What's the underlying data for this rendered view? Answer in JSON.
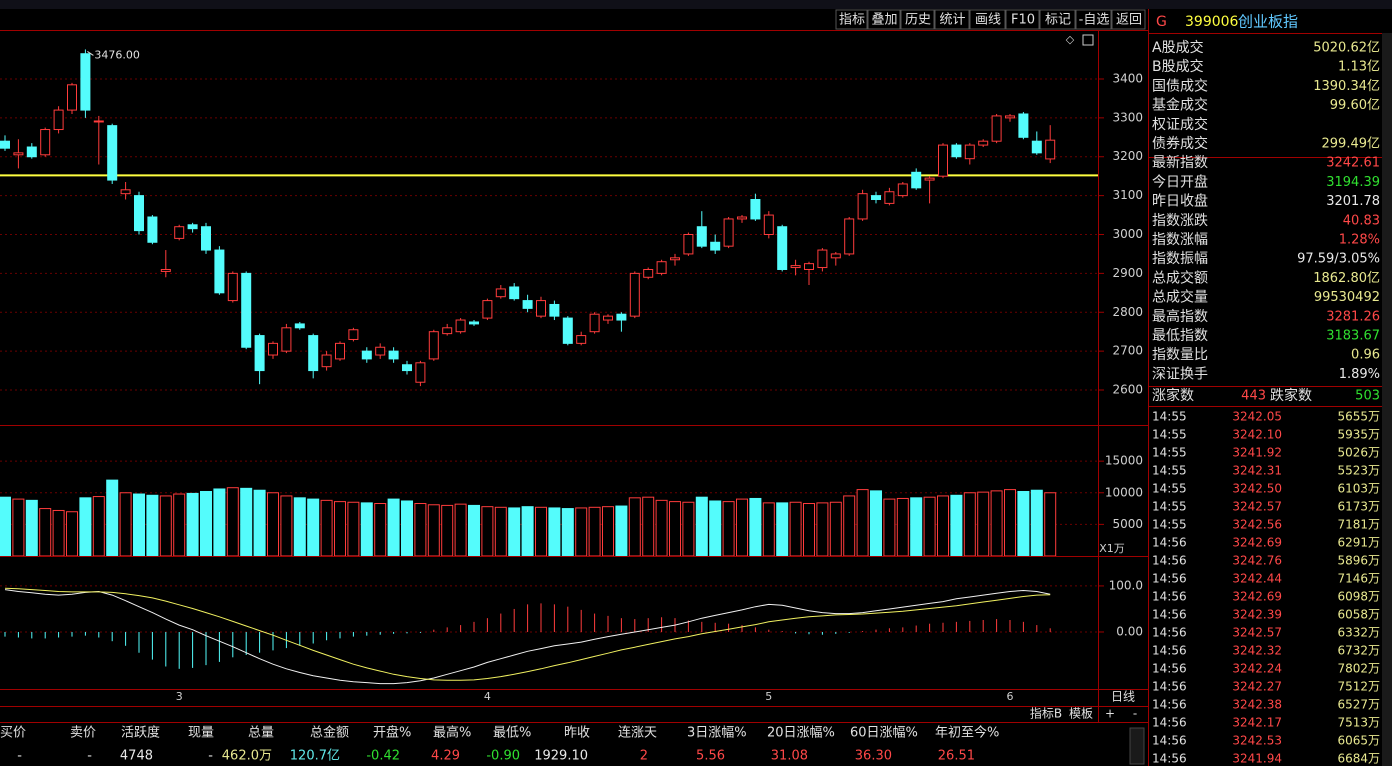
{
  "toolbar": [
    "指标",
    "叠加",
    "历史",
    "统计",
    "画线",
    "F10",
    "标记",
    "-自选",
    "返回"
  ],
  "header": {
    "badge": "G",
    "code": "399006",
    "name": "创业板指"
  },
  "stats": {
    "rows": [
      {
        "label": "A股成交",
        "value": "5020.62亿",
        "color": "#e8e890"
      },
      {
        "label": "B股成交",
        "value": "1.13亿",
        "color": "#e8e890"
      },
      {
        "label": "国债成交",
        "value": "1390.34亿",
        "color": "#e8e890"
      },
      {
        "label": "基金成交",
        "value": "99.60亿",
        "color": "#e8e890"
      },
      {
        "label": "权证成交"
      },
      {
        "label": "债券成交",
        "value": "299.49亿",
        "color": "#e8e890"
      },
      {
        "label": "最新指数",
        "value": "3242.61",
        "color": "#ff4848"
      },
      {
        "label": "今日开盘",
        "value": "3194.39",
        "color": "#30e030"
      },
      {
        "label": "昨日收盘",
        "value": "3201.78",
        "color": "#e8e8e8"
      },
      {
        "label": "指数涨跌",
        "value": "40.83",
        "color": "#ff4848"
      },
      {
        "label": "指数涨幅",
        "value": "1.28%",
        "color": "#ff4848"
      },
      {
        "label": "指数振幅",
        "value": "97.59/3.05%",
        "color": "#e8e8e8"
      },
      {
        "label": "总成交额",
        "value": "1862.80亿",
        "color": "#e8e890"
      },
      {
        "label": "总成交量",
        "value": "99530492",
        "color": "#e8e890"
      },
      {
        "label": "最高指数",
        "value": "3281.26",
        "color": "#ff4848"
      },
      {
        "label": "最低指数",
        "value": "3183.67",
        "color": "#30e030"
      },
      {
        "label": "指数量比",
        "value": "0.96",
        "color": "#e8e890"
      },
      {
        "label": "深证换手",
        "value": "1.89%",
        "color": "#e8e8e8"
      }
    ]
  },
  "breadth": {
    "up_label": "涨家数",
    "up": "443",
    "down_label": "跌家数",
    "down": "503"
  },
  "ticks": [
    [
      "14:55",
      "3242.05",
      "5655万"
    ],
    [
      "14:55",
      "3242.10",
      "5935万"
    ],
    [
      "14:55",
      "3241.92",
      "5026万"
    ],
    [
      "14:55",
      "3242.31",
      "5523万"
    ],
    [
      "14:55",
      "3242.50",
      "6103万"
    ],
    [
      "14:55",
      "3242.57",
      "6173万"
    ],
    [
      "14:55",
      "3242.56",
      "7181万"
    ],
    [
      "14:56",
      "3242.69",
      "6291万"
    ],
    [
      "14:56",
      "3242.76",
      "5896万"
    ],
    [
      "14:56",
      "3242.44",
      "7146万"
    ],
    [
      "14:56",
      "3242.69",
      "6098万"
    ],
    [
      "14:56",
      "3242.39",
      "6058万"
    ],
    [
      "14:56",
      "3242.57",
      "6332万"
    ],
    [
      "14:56",
      "3242.32",
      "6732万"
    ],
    [
      "14:56",
      "3242.24",
      "7802万"
    ],
    [
      "14:56",
      "3242.27",
      "7512万"
    ],
    [
      "14:56",
      "3242.38",
      "6527万"
    ],
    [
      "14:56",
      "3242.17",
      "7513万"
    ],
    [
      "14:56",
      "3242.53",
      "6065万"
    ],
    [
      "14:56",
      "3241.94",
      "6684万"
    ]
  ],
  "bottom_bar": {
    "columns": [
      {
        "header": "买价",
        "value": "-",
        "color": "#e8e8e8"
      },
      {
        "header": "卖价",
        "value": "-",
        "color": "#e8e8e8"
      },
      {
        "header": "活跃度",
        "value": "4748",
        "color": "#e8e8e8"
      },
      {
        "header": "现量",
        "value": "-",
        "color": "#e8e8e8"
      },
      {
        "header": "总量",
        "value": "462.0万",
        "color": "#e8e890"
      },
      {
        "header": "总金额",
        "value": "120.7亿",
        "color": "#60e8e8"
      },
      {
        "header": "开盘%",
        "value": "-0.42",
        "color": "#30e030"
      },
      {
        "header": "最高%",
        "value": "4.29",
        "color": "#ff4848"
      },
      {
        "header": "最低%",
        "value": "-0.90",
        "color": "#30e030"
      },
      {
        "header": "昨收",
        "value": "1929.10",
        "color": "#e8e8e8"
      },
      {
        "header": "连涨天",
        "value": "2",
        "color": "#ff4848"
      },
      {
        "header": "3日涨幅%",
        "value": "5.56",
        "color": "#ff4848"
      },
      {
        "header": "20日涨幅%",
        "value": "31.08",
        "color": "#ff4848"
      },
      {
        "header": "60日涨幅%",
        "value": "36.30",
        "color": "#ff4848"
      },
      {
        "header": "年初至今%",
        "value": "26.51",
        "color": "#ff4848"
      }
    ]
  },
  "controls": {
    "period": "日线",
    "buttons": [
      "指标B",
      "模板",
      "+",
      "-"
    ]
  },
  "chart_data": [
    {
      "type": "candlestick",
      "categories": [
        null,
        null,
        null,
        null,
        null,
        null,
        null,
        null,
        null,
        null,
        null,
        null,
        null,
        "3",
        null,
        null,
        null,
        null,
        null,
        null,
        null,
        null,
        null,
        null,
        null,
        null,
        null,
        null,
        null,
        null,
        null,
        null,
        null,
        null,
        null,
        null,
        "4",
        null,
        null,
        null,
        null,
        null,
        null,
        null,
        null,
        null,
        null,
        null,
        null,
        null,
        null,
        null,
        null,
        null,
        null,
        null,
        null,
        "5",
        null,
        null,
        null,
        null,
        null,
        null,
        null,
        null,
        null,
        null,
        null,
        null,
        null,
        null,
        null,
        null,
        null,
        "6",
        null,
        null,
        null
      ],
      "open": [
        3240,
        3205,
        3225,
        3205,
        3270,
        3320,
        3465,
        3290,
        3280,
        3105,
        3100,
        3045,
        2905,
        2990,
        3025,
        3020,
        2960,
        2830,
        2900,
        2740,
        2690,
        2700,
        2770,
        2740,
        2660,
        2680,
        2730,
        2700,
        2690,
        2700,
        2665,
        2620,
        2680,
        2745,
        2750,
        2775,
        2785,
        2840,
        2865,
        2830,
        2790,
        2820,
        2785,
        2720,
        2750,
        2780,
        2795,
        2790,
        2890,
        2900,
        2935,
        2950,
        3020,
        2980,
        2970,
        3040,
        3090,
        3000,
        3020,
        2915,
        2910,
        2915,
        2940,
        2950,
        3040,
        3100,
        3080,
        3100,
        3160,
        3140,
        3150,
        3230,
        3195,
        3230,
        3240,
        3300,
        3310,
        3240,
        3194.39
      ],
      "high": [
        3255,
        3245,
        3235,
        3275,
        3330,
        3390,
        3476,
        3305,
        3285,
        3135,
        3110,
        3050,
        2960,
        3025,
        3030,
        3030,
        2970,
        2905,
        2905,
        2745,
        2725,
        2770,
        2775,
        2745,
        2700,
        2725,
        2760,
        2710,
        2720,
        2710,
        2675,
        2675,
        2755,
        2770,
        2785,
        2780,
        2835,
        2870,
        2875,
        2845,
        2840,
        2830,
        2790,
        2750,
        2800,
        2795,
        2800,
        2905,
        2915,
        2935,
        2950,
        3005,
        3060,
        3000,
        3045,
        3050,
        3105,
        3060,
        3025,
        2935,
        2930,
        2965,
        2955,
        3045,
        3115,
        3110,
        3120,
        3135,
        3170,
        3150,
        3235,
        3235,
        3235,
        3245,
        3310,
        3310,
        3315,
        3265,
        3281.26
      ],
      "low": [
        3215,
        3170,
        3195,
        3200,
        3260,
        3310,
        3300,
        3180,
        3130,
        3090,
        3000,
        2975,
        2890,
        2985,
        3005,
        2950,
        2845,
        2825,
        2705,
        2615,
        2680,
        2695,
        2755,
        2630,
        2650,
        2675,
        2725,
        2670,
        2680,
        2670,
        2640,
        2610,
        2675,
        2740,
        2745,
        2765,
        2780,
        2835,
        2830,
        2800,
        2785,
        2780,
        2715,
        2715,
        2745,
        2770,
        2750,
        2785,
        2885,
        2895,
        2920,
        2945,
        2965,
        2950,
        2965,
        3030,
        3035,
        2990,
        2905,
        2895,
        2870,
        2905,
        2920,
        2945,
        3035,
        3080,
        3075,
        3095,
        3115,
        3080,
        3145,
        3195,
        3180,
        3225,
        3235,
        3290,
        3245,
        3205,
        3183.67
      ],
      "close": [
        3222,
        3210,
        3200,
        3270,
        3320,
        3385,
        3320,
        3292,
        3140,
        3115,
        3010,
        2980,
        2910,
        3020,
        3015,
        2960,
        2850,
        2900,
        2710,
        2650,
        2720,
        2760,
        2760,
        2650,
        2690,
        2720,
        2755,
        2680,
        2710,
        2680,
        2650,
        2670,
        2750,
        2760,
        2780,
        2770,
        2830,
        2860,
        2835,
        2810,
        2830,
        2790,
        2720,
        2740,
        2795,
        2790,
        2780,
        2900,
        2910,
        2930,
        2940,
        3000,
        2970,
        2960,
        3040,
        3045,
        3040,
        3050,
        2910,
        2920,
        2925,
        2960,
        2950,
        3040,
        3105,
        3090,
        3110,
        3130,
        3120,
        3145,
        3230,
        3200,
        3230,
        3240,
        3305,
        3305,
        3250,
        3210,
        3242.61
      ],
      "up_color": "#ff3c3c",
      "down_color": "#54fcfc",
      "ylim": [
        2510,
        3526
      ],
      "yticks": [
        2600,
        2700,
        2800,
        2900,
        3000,
        3100,
        3200,
        3300,
        3400
      ],
      "grid": true,
      "annotation": {
        "value": 3476,
        "label": "3476.00"
      },
      "hline": 3152,
      "hline_color": "#ffff40"
    },
    {
      "type": "bar",
      "unit_label": "X1万",
      "values": [
        9300,
        9000,
        8800,
        7500,
        7200,
        7000,
        9200,
        9400,
        12000,
        10000,
        9800,
        9600,
        9500,
        9800,
        9900,
        10200,
        10600,
        10800,
        10700,
        10400,
        10000,
        9500,
        9200,
        9000,
        8800,
        8600,
        8500,
        8400,
        8300,
        9000,
        8700,
        8300,
        8100,
        8000,
        8200,
        8000,
        7800,
        7700,
        7600,
        7800,
        7700,
        7600,
        7500,
        7600,
        7700,
        7800,
        7900,
        9200,
        9300,
        8800,
        8600,
        8500,
        9300,
        8700,
        8600,
        9000,
        9100,
        8400,
        8400,
        8500,
        8300,
        8400,
        8500,
        9500,
        10500,
        10300,
        9000,
        9100,
        9200,
        9300,
        9500,
        9600,
        10000,
        10100,
        10300,
        10500,
        10200,
        10400,
        10000
      ],
      "ylim": [
        0,
        20400
      ],
      "yticks": [
        5000,
        10000,
        15000
      ],
      "grid": true
    },
    {
      "type": "macd",
      "values": [
        -10,
        -12,
        -14,
        -14,
        -12,
        -10,
        -8,
        -12,
        -20,
        -30,
        -45,
        -60,
        -75,
        -80,
        -78,
        -72,
        -65,
        -55,
        -50,
        -45,
        -40,
        -35,
        -30,
        -25,
        -18,
        -14,
        -10,
        -8,
        -6,
        -4,
        -3,
        -2,
        5,
        10,
        15,
        22,
        30,
        40,
        50,
        60,
        62,
        60,
        55,
        48,
        40,
        35,
        30,
        28,
        30,
        32,
        30,
        25,
        22,
        20,
        18,
        15,
        10,
        5,
        2,
        -3,
        -5,
        -6,
        -4,
        -2,
        2,
        5,
        8,
        10,
        14,
        18,
        20,
        22,
        24,
        26,
        28,
        26,
        22,
        15,
        8
      ],
      "up_color": "#ff3c3c",
      "down_color": "#54fcfc",
      "series": [
        {
          "color": "#f0f0f0",
          "values": [
            92,
            88,
            85,
            82,
            80,
            82,
            86,
            88,
            80,
            68,
            55,
            42,
            28,
            15,
            5,
            -8,
            -20,
            -32,
            -45,
            -58,
            -70,
            -80,
            -88,
            -95,
            -100,
            -105,
            -108,
            -110,
            -112,
            -112,
            -110,
            -106,
            -100,
            -92,
            -84,
            -76,
            -66,
            -58,
            -50,
            -42,
            -36,
            -30,
            -26,
            -22,
            -16,
            -10,
            -5,
            0,
            5,
            10,
            15,
            22,
            30,
            36,
            42,
            48,
            55,
            60,
            58,
            52,
            46,
            42,
            40,
            40,
            42,
            46,
            50,
            54,
            58,
            62,
            66,
            72,
            76,
            80,
            84,
            88,
            90,
            88,
            82
          ]
        },
        {
          "color": "#f0f060",
          "values": [
            95,
            94,
            92,
            90,
            88,
            87,
            87,
            87,
            86,
            83,
            79,
            74,
            67,
            59,
            51,
            42,
            33,
            23,
            13,
            3,
            -7,
            -18,
            -29,
            -40,
            -50,
            -60,
            -70,
            -78,
            -85,
            -92,
            -97,
            -101,
            -104,
            -105,
            -105,
            -104,
            -101,
            -97,
            -92,
            -86,
            -80,
            -73,
            -67,
            -60,
            -53,
            -46,
            -39,
            -33,
            -27,
            -21,
            -15,
            -10,
            -4,
            1,
            6,
            11,
            16,
            22,
            26,
            30,
            33,
            35,
            37,
            38,
            39,
            41,
            43,
            45,
            48,
            51,
            54,
            57,
            61,
            65,
            69,
            73,
            77,
            80,
            81
          ]
        }
      ],
      "ylim": [
        -126,
        165
      ],
      "yticks": [
        {
          "value": 0,
          "label": "0.00"
        },
        {
          "value": 100,
          "label": "100.0"
        }
      ],
      "grid": true
    }
  ]
}
